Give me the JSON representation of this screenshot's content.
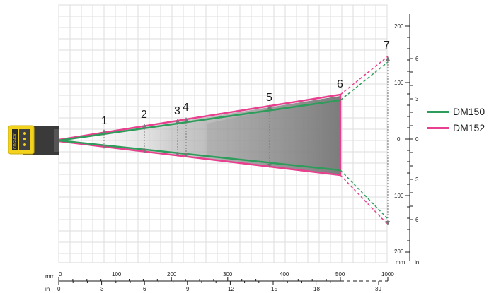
{
  "markers": [
    "1",
    "2",
    "3",
    "4",
    "5",
    "6",
    "7"
  ],
  "legend": [
    {
      "label": "DM150",
      "color": "#2e9c5a"
    },
    {
      "label": "DM152",
      "color": "#e8408e"
    }
  ],
  "bottom_axis": {
    "mm_unit": "mm",
    "in_unit": "in",
    "mm_ticks": [
      "0",
      "100",
      "200",
      "300",
      "400",
      "500",
      "1000"
    ],
    "in_ticks": [
      "0",
      "3",
      "6",
      "9",
      "12",
      "15",
      "18",
      "39"
    ]
  },
  "right_axis": {
    "mm_unit": "mm",
    "in_unit": "in",
    "mm_ticks": [
      "200",
      "100",
      "0",
      "100",
      "200"
    ],
    "in_ticks": [
      "6",
      "3",
      "0",
      "3",
      "6"
    ]
  },
  "device": {
    "brand_text": "COGNEX",
    "body_color": "#f2d21c"
  }
}
